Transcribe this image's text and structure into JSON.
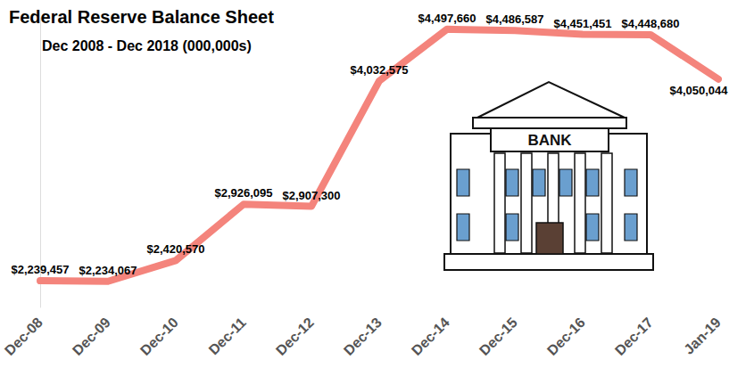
{
  "chart_data": {
    "type": "line",
    "title": "Federal Reserve Balance Sheet",
    "subtitle": "Dec 2008 - Dec 2018 (000,000s)",
    "categories": [
      "Dec-08",
      "Dec-09",
      "Dec-10",
      "Dec-11",
      "Dec-12",
      "Dec-13",
      "Dec-14",
      "Dec-15",
      "Dec-16",
      "Dec-17",
      "Jan-19"
    ],
    "values": [
      2239457,
      2234067,
      2420570,
      2926095,
      2907300,
      4032575,
      4497660,
      4486587,
      4451451,
      4448680,
      4050044
    ],
    "value_labels": [
      "$2,239,457",
      "$2,234,067",
      "$2,420,570",
      "$2,926,095",
      "$2,907,300",
      "$4,032,575",
      "$4,497,660",
      "$4,486,587",
      "$4,451,451",
      "$4,448,680",
      "$4,050,044"
    ],
    "color": "#f4847c",
    "ylim": [
      2000000,
      4600000
    ],
    "yticks": [],
    "grid": false,
    "data_labels": true,
    "tick_labels": "x",
    "annotations": [
      {
        "text": "BANK"
      }
    ]
  }
}
